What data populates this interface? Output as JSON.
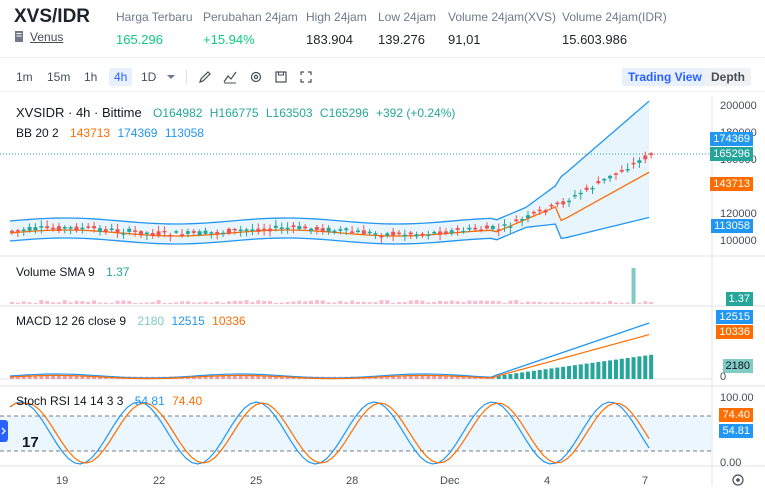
{
  "header": {
    "pair": "XVS/IDR",
    "platform": "Venus",
    "stats": [
      {
        "label": "Harga Terbaru",
        "value": "165.296",
        "color": "green"
      },
      {
        "label": "Perubahan 24jam",
        "value": "+15.94%",
        "color": "green"
      },
      {
        "label": "High 24jam",
        "value": "183.904",
        "color": "default"
      },
      {
        "label": "Low 24jam",
        "value": "139.276",
        "color": "default"
      },
      {
        "label": "Volume 24jam(XVS)",
        "value": "91,01",
        "color": "default"
      },
      {
        "label": "Volume 24jam(IDR)",
        "value": "15.603.986",
        "color": "default"
      }
    ]
  },
  "toolbar": {
    "timeframes": [
      "1m",
      "15m",
      "1h",
      "4h",
      "1D"
    ],
    "active_timeframe": "4h",
    "tools": [
      "draw-icon",
      "indicator-icon",
      "settings-icon",
      "save-icon",
      "fullscreen-icon"
    ],
    "views": [
      "Trading View",
      "Depth"
    ],
    "active_view": "Trading View"
  },
  "chart": {
    "symbol_line": "XVSIDR · 4h · Bittime",
    "ohlc": {
      "o": "O164982",
      "h": "H166775",
      "l": "L163503",
      "c": "C165296",
      "change": "+392 (+0.24%)"
    },
    "bb_label": "BB 20 2",
    "bb_values": [
      "143713",
      "174369",
      "113058"
    ],
    "volume_label": "Volume SMA 9",
    "volume_value": "1.37",
    "macd_label": "MACD 12 26 close 9",
    "macd_values": [
      "2180",
      "12515",
      "10336"
    ],
    "rsi_label": "Stoch RSI 14 14 3 3",
    "rsi_values": [
      "54.81",
      "74.40"
    ],
    "price_axis": [
      "200000",
      "180000",
      "160000",
      "120000",
      "100000"
    ],
    "price_tags": [
      {
        "text": "174369",
        "color": "#2196f3"
      },
      {
        "text": "165296",
        "color": "#26a69a"
      },
      {
        "text": "143713",
        "color": "#ff6d00"
      },
      {
        "text": "113058",
        "color": "#2196f3"
      }
    ],
    "volume_tag": "1.37",
    "macd_tags": [
      "12515",
      "10336",
      "2180"
    ],
    "macd_axis_zero": "0",
    "rsi_tags": [
      "74.40",
      "54.81"
    ],
    "rsi_axis": [
      "100.00",
      "0.00"
    ],
    "x_axis": [
      "19",
      "22",
      "25",
      "28",
      "Dec",
      "4",
      "7"
    ],
    "colors": {
      "up": "#26a69a",
      "down": "#ef5350",
      "bb_mid": "#ff6d00",
      "bb_band": "#2196f3",
      "accent": "#2962ff"
    }
  }
}
